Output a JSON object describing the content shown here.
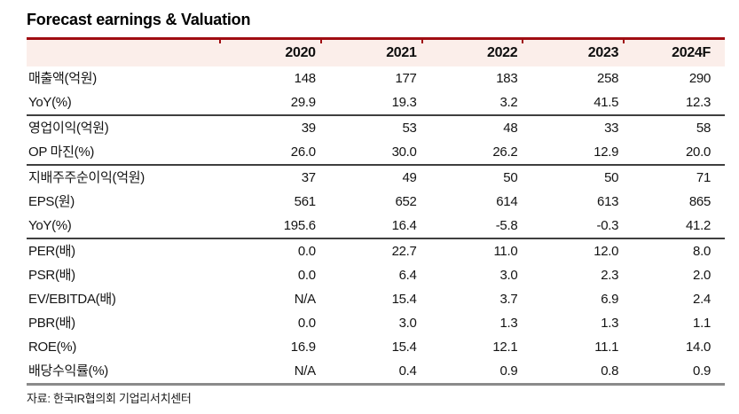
{
  "title": "Forecast earnings & Valuation",
  "source": "자료: 한국IR협의회 기업리서치센터",
  "colors": {
    "accent_red": "#a00d12",
    "header_bg": "#fbeeea",
    "section_divider": "#3f3f3f",
    "bottom_line": "#8a8a8a"
  },
  "table": {
    "label_header": "",
    "columns": [
      "2020",
      "2021",
      "2022",
      "2023",
      "2024F"
    ],
    "rows": [
      {
        "label": "매출액(억원)",
        "values": [
          "148",
          "177",
          "183",
          "258",
          "290"
        ],
        "section_end": false
      },
      {
        "label": "YoY(%)",
        "values": [
          "29.9",
          "19.3",
          "3.2",
          "41.5",
          "12.3"
        ],
        "section_end": true
      },
      {
        "label": "영업이익(억원)",
        "values": [
          "39",
          "53",
          "48",
          "33",
          "58"
        ],
        "section_end": false
      },
      {
        "label": "OP 마진(%)",
        "values": [
          "26.0",
          "30.0",
          "26.2",
          "12.9",
          "20.0"
        ],
        "section_end": true
      },
      {
        "label": "지배주주순이익(억원)",
        "values": [
          "37",
          "49",
          "50",
          "50",
          "71"
        ],
        "section_end": false
      },
      {
        "label": "EPS(원)",
        "values": [
          "561",
          "652",
          "614",
          "613",
          "865"
        ],
        "section_end": false
      },
      {
        "label": "YoY(%)",
        "values": [
          "195.6",
          "16.4",
          "-5.8",
          "-0.3",
          "41.2"
        ],
        "section_end": true
      },
      {
        "label": "PER(배)",
        "values": [
          "0.0",
          "22.7",
          "11.0",
          "12.0",
          "8.0"
        ],
        "section_end": false
      },
      {
        "label": "PSR(배)",
        "values": [
          "0.0",
          "6.4",
          "3.0",
          "2.3",
          "2.0"
        ],
        "section_end": false
      },
      {
        "label": "EV/EBITDA(배)",
        "values": [
          "N/A",
          "15.4",
          "3.7",
          "6.9",
          "2.4"
        ],
        "section_end": false
      },
      {
        "label": "PBR(배)",
        "values": [
          "0.0",
          "3.0",
          "1.3",
          "1.3",
          "1.1"
        ],
        "section_end": false
      },
      {
        "label": "ROE(%)",
        "values": [
          "16.9",
          "15.4",
          "12.1",
          "11.1",
          "14.0"
        ],
        "section_end": false
      },
      {
        "label": "배당수익률(%)",
        "values": [
          "N/A",
          "0.4",
          "0.9",
          "0.8",
          "0.9"
        ],
        "section_end": true
      }
    ]
  }
}
